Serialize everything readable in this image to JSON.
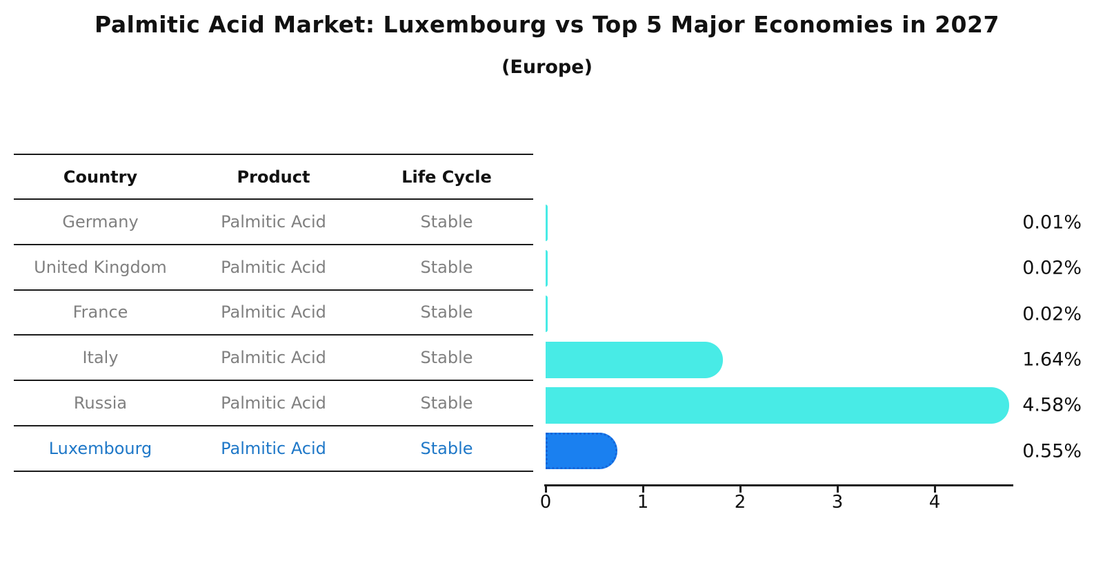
{
  "header": {
    "title": "Palmitic Acid Market: Luxembourg vs Top 5 Major Economies in 2027",
    "subtitle": "(Europe)"
  },
  "table": {
    "columns": [
      "Country",
      "Product",
      "Life Cycle"
    ],
    "rows": [
      {
        "country": "Germany",
        "product": "Palmitic Acid",
        "life_cycle": "Stable",
        "highlight": false
      },
      {
        "country": "United Kingdom",
        "product": "Palmitic Acid",
        "life_cycle": "Stable",
        "highlight": false
      },
      {
        "country": "France",
        "product": "Palmitic Acid",
        "life_cycle": "Stable",
        "highlight": false
      },
      {
        "country": "Italy",
        "product": "Palmitic Acid",
        "life_cycle": "Stable",
        "highlight": false
      },
      {
        "country": "Russia",
        "product": "Palmitic Acid",
        "life_cycle": "Stable",
        "highlight": false
      },
      {
        "country": "Luxembourg",
        "product": "Palmitic Acid",
        "life_cycle": "Stable",
        "highlight": true
      }
    ]
  },
  "chart_data": {
    "type": "bar",
    "orientation": "horizontal",
    "title": "Palmitic Acid Market: Luxembourg vs Top 5 Major Economies in 2027 (Europe)",
    "categories": [
      "Germany",
      "United Kingdom",
      "France",
      "Italy",
      "Russia",
      "Luxembourg"
    ],
    "values": [
      0.01,
      0.02,
      0.02,
      1.64,
      4.58,
      0.55
    ],
    "value_labels": [
      "0.01%",
      "0.02%",
      "0.02%",
      "1.64%",
      "4.58%",
      "0.55%"
    ],
    "x_ticks": [
      "0",
      "1",
      "2",
      "3",
      "4"
    ],
    "xlim": [
      0,
      4.8
    ],
    "grid": false,
    "legend": false,
    "highlight_index": 5,
    "bar_color": "#48EBE6",
    "highlight_bar_color": "#1A80F0",
    "highlight_text_color": "#1F78C8",
    "text_color_muted": "#808080"
  }
}
